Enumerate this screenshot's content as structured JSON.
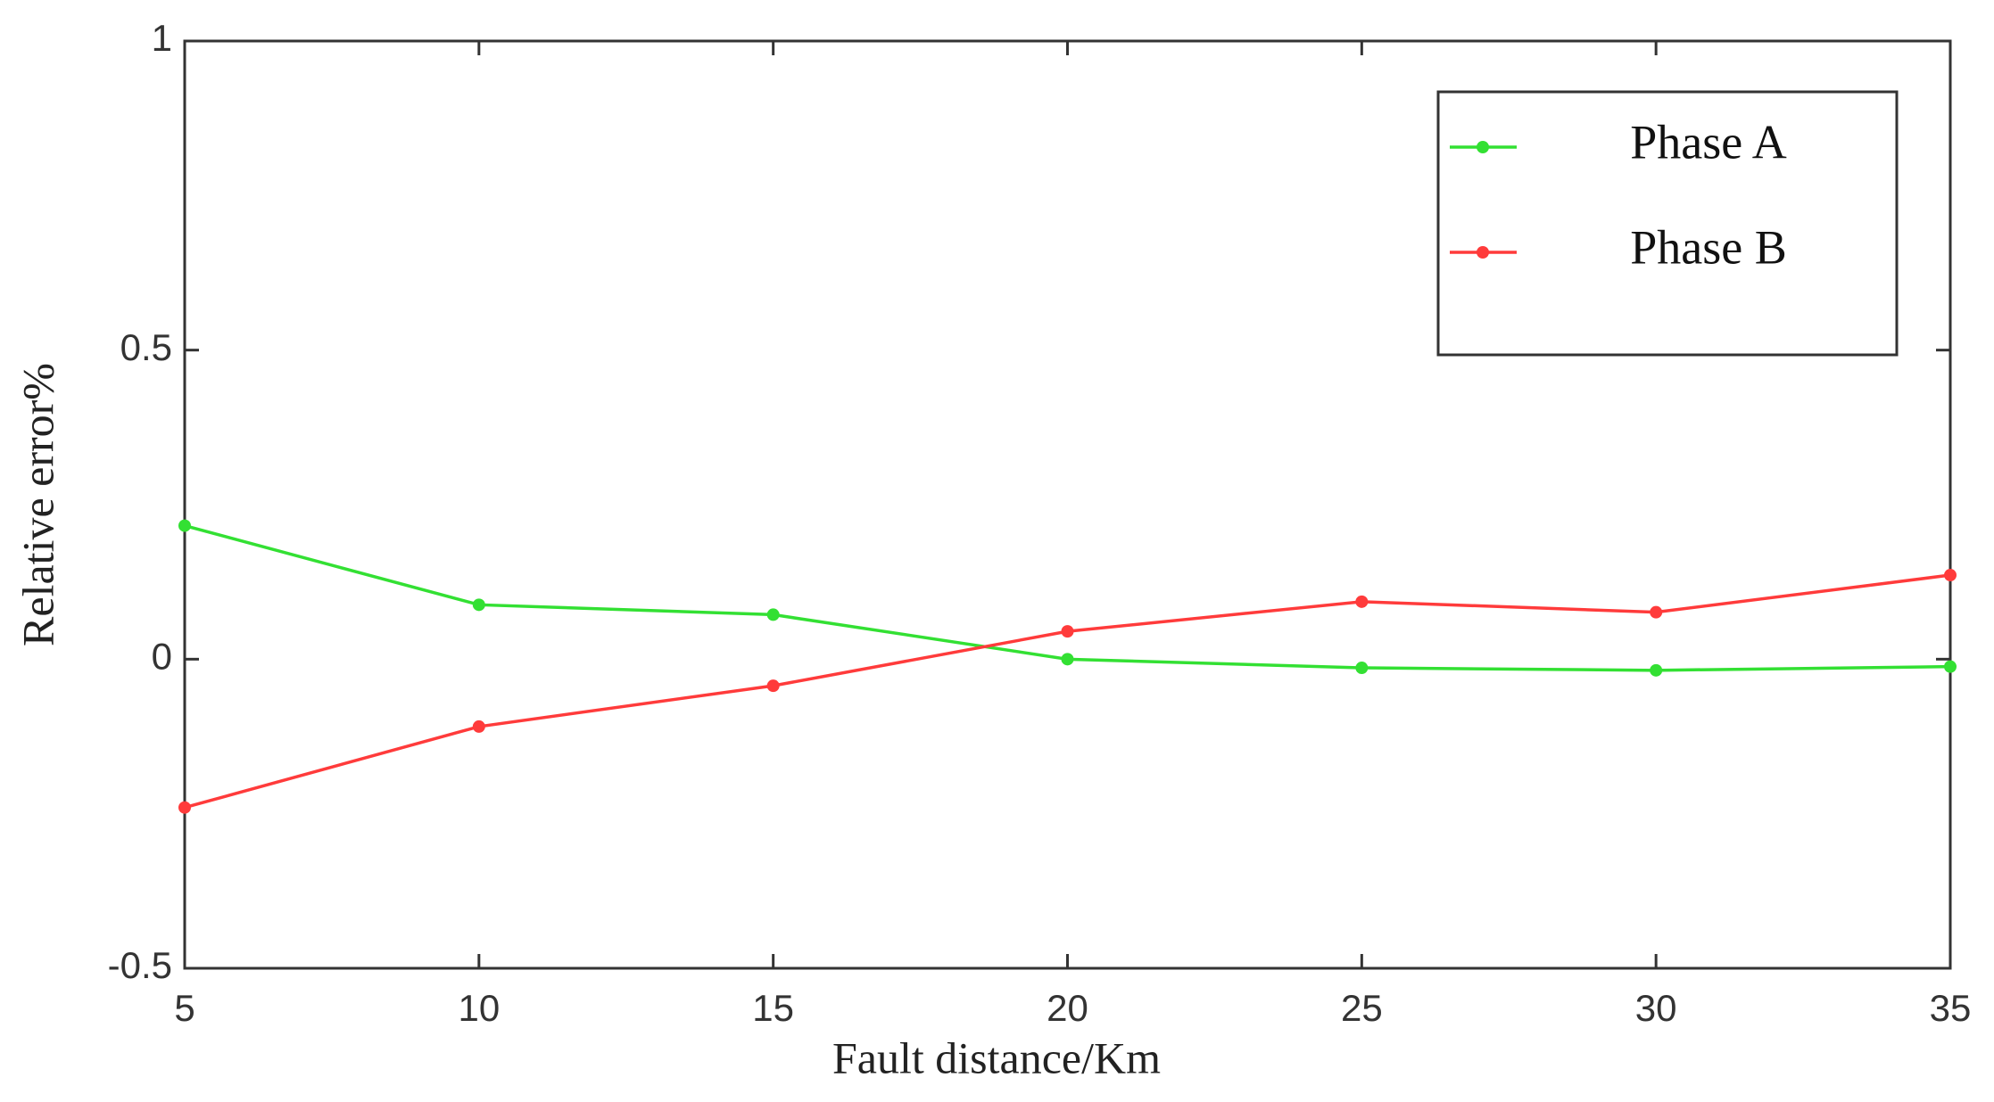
{
  "chart_data": {
    "type": "line",
    "x_label": "Fault distance/Km",
    "y_label": "Relative error%",
    "x": [
      5,
      10,
      15,
      20,
      25,
      30,
      35
    ],
    "series": [
      {
        "name": "Phase A",
        "color": "#33e033",
        "values": [
          0.216,
          0.088,
          0.072,
          0,
          -0.014,
          -0.018,
          -0.012
        ]
      },
      {
        "name": "Phase B",
        "color": "#ff3b3b",
        "values": [
          -0.24,
          -0.109,
          -0.043,
          0.045,
          0.093,
          0.076,
          0.136
        ]
      }
    ],
    "xlim": [
      5,
      35
    ],
    "xticks": [
      5,
      10,
      15,
      20,
      25,
      30,
      35
    ],
    "ylim": [
      -0.5,
      1
    ],
    "yticks": [
      -0.5,
      0,
      0.5,
      1
    ],
    "legend": "northeast"
  }
}
